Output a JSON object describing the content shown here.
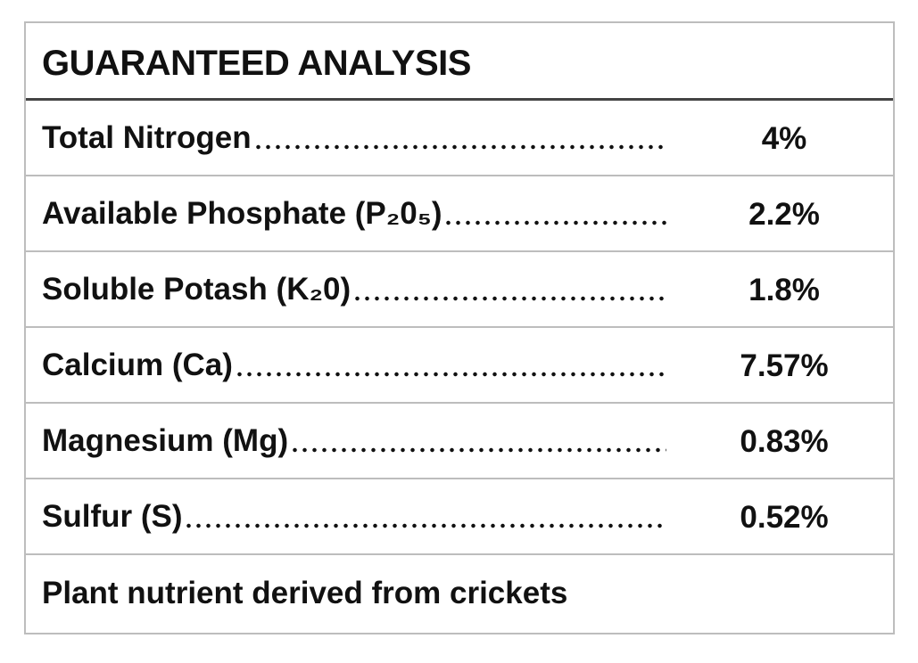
{
  "header": {
    "title": "GUARANTEED ANALYSIS"
  },
  "table": {
    "rows": [
      [
        "Total Nitrogen",
        "4%"
      ],
      [
        "Available Phosphate (P₂0₅)",
        "2.2%"
      ],
      [
        "Soluble Potash (K₂0)",
        "1.8%"
      ],
      [
        "Calcium (Ca)",
        "7.57%"
      ],
      [
        "Magnesium (Mg)",
        "0.83%"
      ],
      [
        "Sulfur (S)",
        "0.52%"
      ]
    ]
  },
  "footer": {
    "note": "Plant nutrient derived from crickets"
  }
}
